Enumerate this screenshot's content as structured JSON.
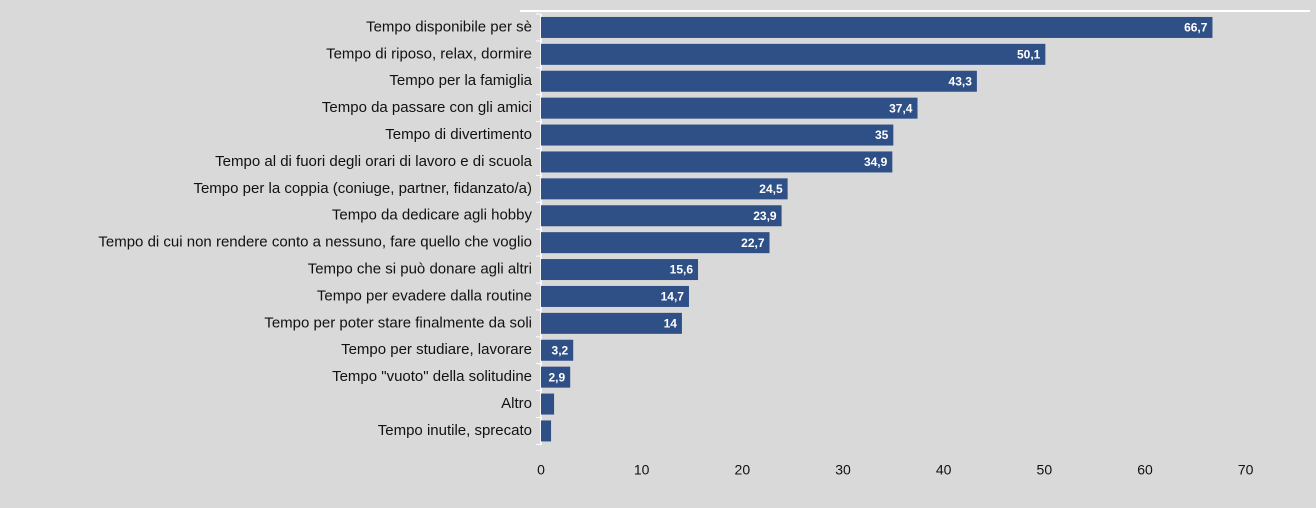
{
  "chart_data": {
    "type": "hbar",
    "categories": [
      "Tempo disponibile per sè",
      "Tempo di riposo, relax, dormire",
      "Tempo per la famiglia",
      "Tempo da passare con gli amici",
      "Tempo di divertimento",
      "Tempo al di fuori degli orari di lavoro e di scuola",
      "Tempo per la coppia (coniuge, partner, fidanzato/a)",
      "Tempo da dedicare agli hobby",
      "Tempo di cui non rendere conto a nessuno, fare quello che voglio",
      "Tempo che si può donare agli altri",
      "Tempo per evadere dalla routine",
      "Tempo per poter stare finalmente da soli",
      "Tempo per studiare, lavorare",
      "Tempo \"vuoto\" della solitudine",
      "Altro",
      "Tempo inutile, sprecato"
    ],
    "values": [
      66.7,
      50.1,
      43.3,
      37.4,
      35,
      34.9,
      24.5,
      23.9,
      22.7,
      15.6,
      14.7,
      14,
      3.2,
      2.9,
      1.3,
      1.0
    ],
    "value_labels": [
      "66,7",
      "50,1",
      "43,3",
      "37,4",
      "35",
      "34,9",
      "24,5",
      "23,9",
      "22,7",
      "15,6",
      "14,7",
      "14",
      "3,2",
      "2,9",
      null,
      null
    ],
    "color": "#2f4f87",
    "xlim": [
      0,
      75
    ],
    "xticks": [
      0,
      10,
      20,
      30,
      40,
      50,
      60,
      70
    ]
  }
}
